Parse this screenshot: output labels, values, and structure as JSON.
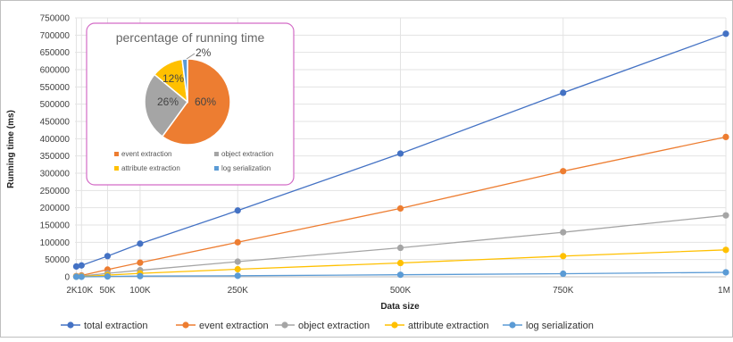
{
  "chart_data": [
    {
      "type": "line",
      "xlabel": "Data size",
      "ylabel": "Running time (ms)",
      "xlim": [
        0,
        1000000
      ],
      "ylim": [
        0,
        750000
      ],
      "x": [
        2000,
        10000,
        50000,
        100000,
        250000,
        500000,
        750000,
        1000000
      ],
      "x_tick_values": [
        2000,
        10000,
        50000,
        100000,
        250000,
        500000,
        750000,
        1000000
      ],
      "x_tick_labels": [
        "2K",
        "10K",
        "50K",
        "100K",
        "250K",
        "500K",
        "750K",
        "1M"
      ],
      "y_ticks": [
        0,
        50000,
        100000,
        150000,
        200000,
        250000,
        300000,
        350000,
        400000,
        450000,
        500000,
        550000,
        600000,
        650000,
        700000,
        750000
      ],
      "grid": true,
      "legend_position": "bottom",
      "series": [
        {
          "name": "total extraction",
          "color": "#4472C4",
          "values": [
            30000,
            33000,
            60000,
            96000,
            192000,
            357000,
            533000,
            704000
          ]
        },
        {
          "name": "event extraction",
          "color": "#ED7D31",
          "values": [
            2000,
            4000,
            21000,
            41000,
            100000,
            198000,
            306000,
            405000
          ]
        },
        {
          "name": "object extraction",
          "color": "#A5A5A5",
          "values": [
            1000,
            2000,
            10000,
            19000,
            44000,
            84000,
            129000,
            178000
          ]
        },
        {
          "name": "attribute extraction",
          "color": "#FFC000",
          "values": [
            500,
            1000,
            5000,
            10000,
            22000,
            40000,
            60000,
            78000
          ]
        },
        {
          "name": "log serialization",
          "color": "#5B9BD5",
          "values": [
            0,
            0,
            1000,
            2000,
            3000,
            6000,
            9000,
            13000
          ]
        }
      ]
    },
    {
      "type": "pie",
      "title": "percentage of running time",
      "legend_position": "bottom",
      "slices": [
        {
          "name": "event extraction",
          "value": 60,
          "label": "60%",
          "color": "#ED7D31"
        },
        {
          "name": "object extraction",
          "value": 26,
          "label": "26%",
          "color": "#A5A5A5"
        },
        {
          "name": "attribute extraction",
          "value": 12,
          "label": "12%",
          "color": "#FFC000"
        },
        {
          "name": "log serialization",
          "value": 2,
          "label": "2%",
          "color": "#5B9BD5"
        }
      ]
    }
  ]
}
